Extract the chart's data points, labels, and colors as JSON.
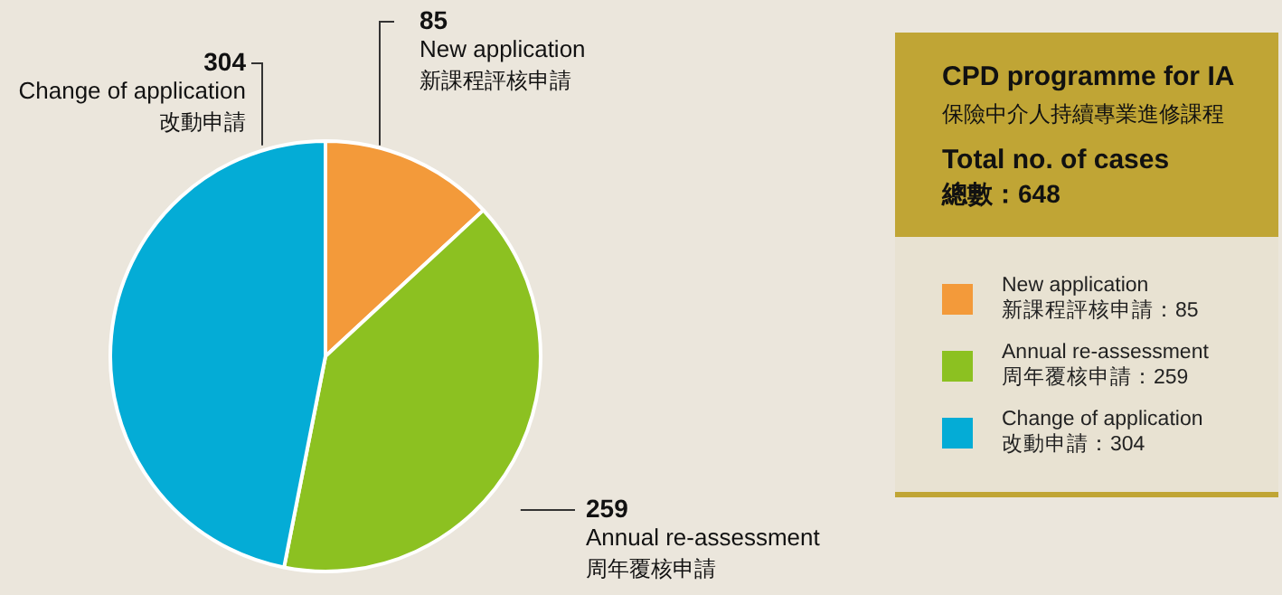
{
  "chart_data": {
    "type": "pie",
    "title": "CPD programme for IA",
    "subtitle": "保險中介人持續專業進修課程",
    "categories": [
      "New application\n新課程評核申請",
      "Annual re-assessment\n周年覆核申請",
      "Change of application\n改動申請"
    ],
    "values": [
      85,
      259,
      304
    ],
    "colors": [
      "#f39a3a",
      "#8cc121",
      "#04acd6"
    ],
    "data_labels": true,
    "annotations": [
      "Total no. of cases",
      "總數：648",
      "New application\n新課程評核申請：85",
      "Annual re-assessment\n周年覆核申請：259",
      "Change of application\n改動申請：304"
    ]
  }
}
